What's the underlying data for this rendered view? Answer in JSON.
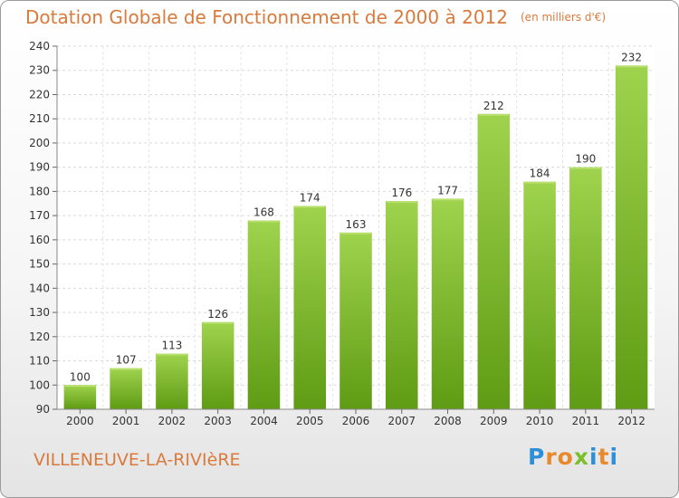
{
  "header": {
    "title": "Dotation Globale de Fonctionnement de 2000 à 2012",
    "unit_note": "(en milliers d'€)"
  },
  "commune_label": "VILLENEUVE-LA-RIVIèRE",
  "logo": {
    "text": "Proxiti",
    "letter_colors": [
      "#2e8fd8",
      "#e8892c",
      "#e8892c",
      "#7bbf2a",
      "#2e8fd8",
      "#e8892c",
      "#2e8fd8"
    ]
  },
  "colors": {
    "bar_top": "#9fd34e",
    "bar_bottom": "#5f9b14",
    "axis_text": "#333333",
    "title": "#d97a3c"
  },
  "chart_data": {
    "type": "bar",
    "categories": [
      "2000",
      "2001",
      "2002",
      "2003",
      "2004",
      "2005",
      "2006",
      "2007",
      "2008",
      "2009",
      "2010",
      "2011",
      "2012"
    ],
    "values": [
      100,
      107,
      113,
      126,
      168,
      174,
      163,
      176,
      177,
      212,
      184,
      190,
      232
    ],
    "ylim": [
      90,
      240
    ],
    "yticks": [
      90,
      100,
      110,
      120,
      130,
      140,
      150,
      160,
      170,
      180,
      190,
      200,
      210,
      220,
      230,
      240
    ],
    "grid": true,
    "data_labels": true
  }
}
